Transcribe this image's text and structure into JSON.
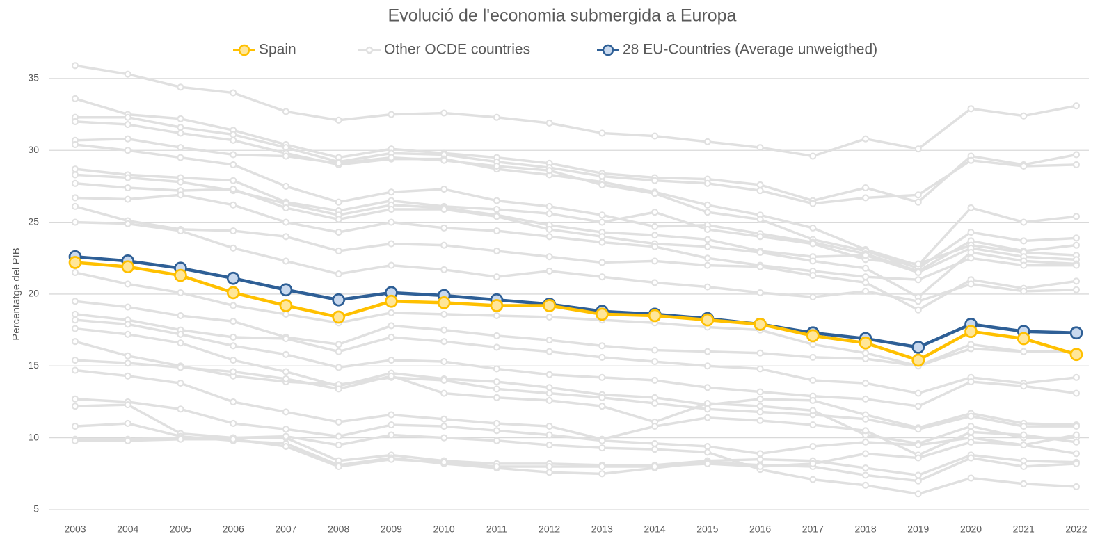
{
  "chart_data": {
    "type": "line",
    "title": "Evolució de l'economia submergida a Europa",
    "y_label": "Percentatge del PIB",
    "categories": [
      "2003",
      "2004",
      "2005",
      "2006",
      "2007",
      "2008",
      "2009",
      "2010",
      "2011",
      "2012",
      "2013",
      "2014",
      "2015",
      "2016",
      "2017",
      "2018",
      "2019",
      "2020",
      "2021",
      "2022"
    ],
    "ylim": [
      5,
      36
    ],
    "yticks": [
      5,
      10,
      15,
      20,
      25,
      30,
      35
    ],
    "grid": true,
    "legend": "top",
    "series": [
      {
        "name": "Spain",
        "color": "#ffc000",
        "marker_fill": "#ffe699",
        "values": [
          22.2,
          21.9,
          21.3,
          20.1,
          19.2,
          18.4,
          19.5,
          19.4,
          19.2,
          19.2,
          18.6,
          18.5,
          18.2,
          17.9,
          17.1,
          16.6,
          15.4,
          17.4,
          16.9,
          15.8
        ]
      },
      {
        "name": "Other OCDE countries",
        "color": "#e0e0e0",
        "marker_fill": "#ffffff",
        "lines": [
          [
            35.9,
            35.3,
            34.4,
            34.0,
            32.7,
            32.1,
            32.5,
            32.6,
            32.3,
            31.9,
            31.2,
            31.0,
            30.6,
            30.2,
            29.6,
            30.8,
            30.1,
            32.9,
            32.4,
            33.1
          ],
          [
            33.6,
            32.5,
            32.2,
            31.4,
            30.4,
            29.5,
            30.1,
            29.8,
            29.5,
            29.1,
            28.4,
            28.1,
            28.0,
            27.6,
            26.5,
            27.4,
            26.4,
            29.6,
            29.0,
            29.7
          ],
          [
            32.3,
            32.3,
            31.6,
            31.1,
            30.2,
            29.2,
            29.8,
            29.7,
            29.2,
            28.8,
            28.2,
            27.9,
            27.7,
            27.2,
            26.3,
            26.7,
            26.9,
            29.3,
            28.9,
            29.0
          ],
          [
            32.0,
            31.8,
            31.2,
            30.7,
            29.8,
            29.0,
            29.4,
            29.4,
            28.7,
            28.3,
            27.8,
            27.1,
            26.2,
            25.5,
            24.6,
            23.1,
            22.0,
            26.0,
            25.0,
            25.4
          ],
          [
            30.7,
            30.8,
            30.2,
            29.7,
            29.6,
            29.1,
            29.5,
            29.3,
            28.9,
            28.6,
            27.6,
            27.0,
            25.7,
            25.2,
            23.8,
            23.0,
            21.8,
            24.3,
            23.7,
            23.9
          ],
          [
            30.4,
            30.0,
            29.5,
            29.0,
            27.5,
            26.4,
            27.1,
            27.3,
            26.5,
            26.1,
            25.5,
            24.7,
            24.8,
            24.2,
            23.6,
            22.8,
            21.6,
            23.7,
            23.0,
            23.4
          ],
          [
            28.7,
            28.3,
            28.1,
            27.9,
            26.4,
            25.8,
            26.5,
            26.1,
            25.9,
            25.6,
            25.0,
            25.7,
            24.5,
            24.0,
            23.5,
            22.4,
            22.1,
            23.4,
            22.9,
            22.7
          ],
          [
            28.3,
            28.1,
            27.8,
            27.2,
            26.3,
            25.5,
            26.2,
            26.0,
            25.5,
            24.8,
            24.3,
            24.1,
            23.8,
            23.0,
            22.6,
            22.7,
            21.5,
            23.2,
            22.6,
            22.4
          ],
          [
            27.7,
            27.4,
            27.2,
            27.3,
            26.0,
            25.2,
            25.9,
            25.9,
            25.4,
            24.5,
            24.0,
            23.5,
            23.3,
            22.9,
            22.3,
            21.8,
            19.8,
            22.9,
            22.3,
            22.1
          ],
          [
            26.7,
            26.6,
            26.9,
            26.2,
            25.0,
            24.3,
            25.0,
            24.6,
            24.4,
            24.0,
            23.6,
            23.3,
            22.5,
            22.0,
            21.6,
            21.2,
            21.0,
            22.5,
            22.0,
            22.0
          ],
          [
            26.1,
            25.1,
            24.5,
            24.4,
            24.0,
            23.0,
            23.5,
            23.4,
            23.0,
            22.6,
            22.2,
            22.3,
            22.0,
            21.9,
            21.3,
            20.8,
            18.9,
            21.0,
            20.4,
            20.9
          ],
          [
            25.0,
            24.9,
            24.4,
            23.2,
            22.3,
            21.4,
            22.0,
            21.7,
            21.2,
            21.6,
            21.2,
            20.8,
            20.5,
            20.1,
            19.8,
            20.2,
            19.5,
            20.7,
            20.2,
            20.3
          ],
          [
            21.5,
            20.7,
            20.1,
            19.2,
            18.6,
            18.0,
            18.7,
            18.6,
            18.5,
            18.4,
            18.2,
            18.0,
            17.7,
            17.5,
            16.5,
            15.9,
            15.0,
            16.2,
            16.0,
            16.0
          ],
          [
            19.5,
            19.1,
            18.5,
            18.1,
            17.0,
            16.5,
            17.8,
            17.5,
            17.1,
            16.8,
            16.4,
            16.1,
            16.0,
            15.9,
            15.6,
            15.5,
            15.0,
            16.5,
            16.0,
            16.0
          ],
          [
            18.6,
            18.2,
            17.5,
            17.0,
            16.9,
            16.0,
            17.0,
            16.7,
            16.3,
            16.0,
            15.6,
            15.3,
            15.0,
            14.8,
            14.0,
            13.8,
            13.1,
            14.2,
            13.8,
            14.2
          ],
          [
            18.2,
            17.9,
            17.2,
            16.4,
            15.8,
            14.9,
            15.4,
            15.3,
            14.8,
            14.4,
            14.2,
            14.0,
            13.5,
            13.2,
            12.9,
            12.7,
            12.2,
            13.9,
            13.6,
            13.1
          ],
          [
            17.6,
            17.2,
            16.6,
            15.4,
            14.6,
            13.6,
            14.5,
            14.1,
            13.9,
            13.5,
            13.0,
            12.8,
            12.3,
            12.7,
            12.6,
            11.6,
            10.7,
            11.7,
            11.0,
            10.9
          ],
          [
            16.7,
            15.7,
            15.0,
            14.3,
            13.9,
            13.7,
            14.2,
            14.0,
            13.4,
            13.1,
            12.8,
            12.4,
            12.0,
            11.8,
            11.6,
            11.3,
            10.6,
            11.5,
            10.8,
            10.8
          ],
          [
            15.4,
            15.2,
            14.9,
            14.6,
            14.1,
            13.4,
            14.3,
            13.1,
            12.8,
            12.6,
            12.2,
            11.1,
            12.4,
            12.2,
            11.9,
            10.2,
            9.6,
            10.8,
            10.0,
            10.0
          ],
          [
            14.7,
            14.3,
            13.8,
            12.5,
            11.8,
            11.1,
            11.6,
            11.3,
            11.0,
            10.8,
            9.9,
            10.8,
            11.4,
            11.2,
            10.9,
            10.5,
            8.8,
            10.4,
            10.2,
            9.7
          ],
          [
            12.7,
            12.5,
            12.0,
            11.0,
            10.6,
            10.1,
            10.9,
            10.8,
            10.5,
            10.2,
            9.8,
            9.6,
            9.4,
            8.9,
            9.4,
            9.7,
            9.5,
            10.0,
            9.5,
            8.9
          ],
          [
            12.2,
            12.3,
            10.3,
            10.0,
            10.0,
            8.4,
            8.8,
            8.4,
            8.2,
            8.2,
            8.1,
            8.1,
            8.4,
            8.5,
            8.4,
            7.9,
            7.4,
            8.8,
            8.4,
            8.3
          ],
          [
            10.8,
            11.0,
            10.1,
            9.8,
            9.6,
            8.1,
            8.6,
            8.2,
            7.9,
            7.6,
            7.5,
            7.9,
            8.3,
            8.1,
            8.0,
            7.4,
            7.0,
            8.6,
            8.0,
            8.2
          ],
          [
            9.9,
            9.9,
            10.0,
            10.0,
            10.1,
            9.5,
            10.2,
            10.0,
            9.8,
            9.5,
            9.3,
            9.2,
            9.0,
            7.8,
            7.1,
            6.7,
            6.1,
            7.2,
            6.8,
            6.6
          ],
          [
            9.8,
            9.8,
            9.9,
            9.9,
            9.4,
            8.0,
            8.5,
            8.3,
            8.0,
            8.0,
            8.0,
            8.0,
            8.2,
            8.0,
            8.2,
            8.9,
            8.6,
            9.7,
            9.5,
            10.2
          ]
        ]
      },
      {
        "name": "28 EU-Countries (Average unweigthed)",
        "color": "#2e5f96",
        "marker_fill": "#c9d9ee",
        "values": [
          22.6,
          22.3,
          21.8,
          21.1,
          20.3,
          19.6,
          20.1,
          19.9,
          19.6,
          19.3,
          18.8,
          18.6,
          18.3,
          17.9,
          17.3,
          16.9,
          16.3,
          17.9,
          17.4,
          17.3
        ]
      }
    ]
  }
}
